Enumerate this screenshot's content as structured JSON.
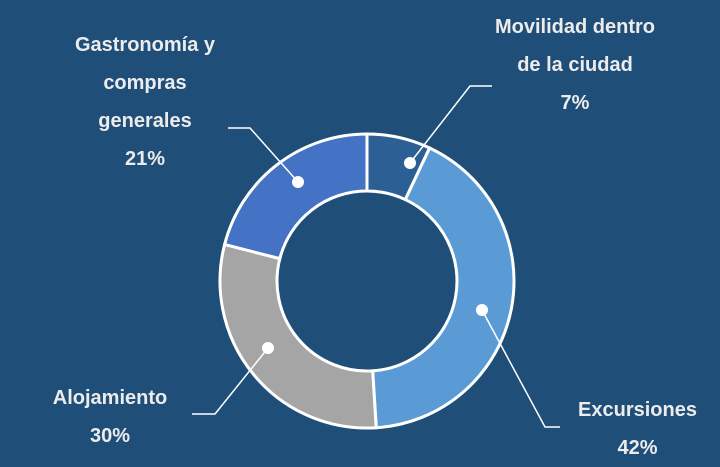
{
  "chart_data": {
    "type": "donut",
    "categories": [
      "Movilidad dentro de la ciudad",
      "Excursiones",
      "Alojamiento",
      "Gastronomía y compras generales"
    ],
    "values": [
      7,
      42,
      30,
      21
    ],
    "value_labels": [
      "7%",
      "42%",
      "30%",
      "21%"
    ],
    "colors": [
      "#2c5f93",
      "#5b9bd5",
      "#a5a5a5",
      "#4472c4"
    ]
  }
}
